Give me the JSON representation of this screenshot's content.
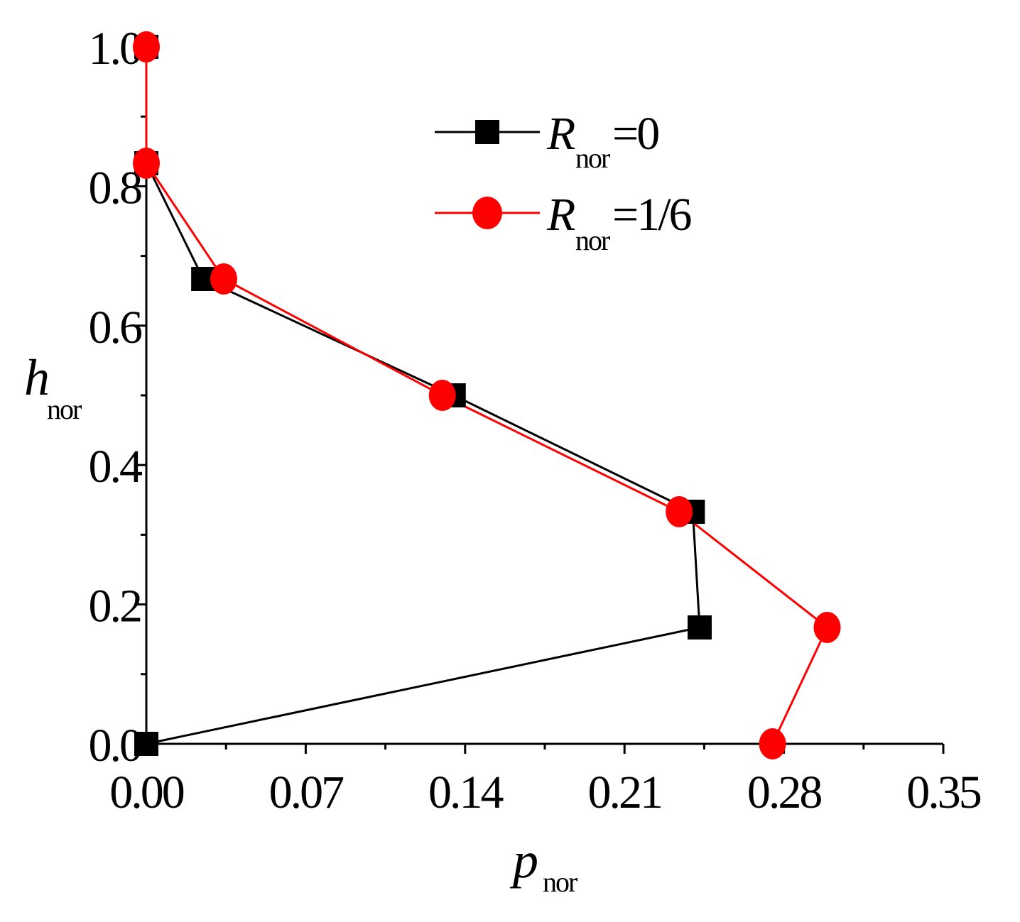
{
  "chart_data": {
    "type": "line",
    "xlabel": {
      "main": "p",
      "sub": "nor"
    },
    "ylabel": {
      "main": "h",
      "sub": "nor"
    },
    "xlim": [
      0,
      0.35
    ],
    "ylim": [
      0,
      1.0
    ],
    "x_ticks": [
      "0.00",
      "0.07",
      "0.14",
      "0.21",
      "0.28",
      "0.35"
    ],
    "x_tick_values": [
      0,
      0.07,
      0.14,
      0.21,
      0.28,
      0.35
    ],
    "y_ticks": [
      "0.0",
      "0.2",
      "0.4",
      "0.6",
      "0.8",
      "1.0"
    ],
    "y_tick_values": [
      0,
      0.2,
      0.4,
      0.6,
      0.8,
      1.0
    ],
    "grid": false,
    "legend_position": "top-right",
    "series": [
      {
        "name": "R_nor=0",
        "legend": {
          "main": "R",
          "sub": "nor",
          "value": "=0"
        },
        "color": "#000000",
        "marker": "square",
        "x": [
          0.0,
          0.243,
          0.24,
          0.135,
          0.025,
          0.0,
          0.0
        ],
        "y": [
          0.0,
          0.167,
          0.333,
          0.5,
          0.667,
          0.833,
          1.0
        ]
      },
      {
        "name": "R_nor=1/6",
        "legend": {
          "main": "R",
          "sub": "nor",
          "value": "=1/6"
        },
        "color": "#ff0000",
        "marker": "circle",
        "x": [
          0.275,
          0.299,
          0.234,
          0.13,
          0.034,
          0.0,
          0.0
        ],
        "y": [
          0.0,
          0.167,
          0.333,
          0.5,
          0.667,
          0.833,
          1.0
        ]
      }
    ]
  }
}
